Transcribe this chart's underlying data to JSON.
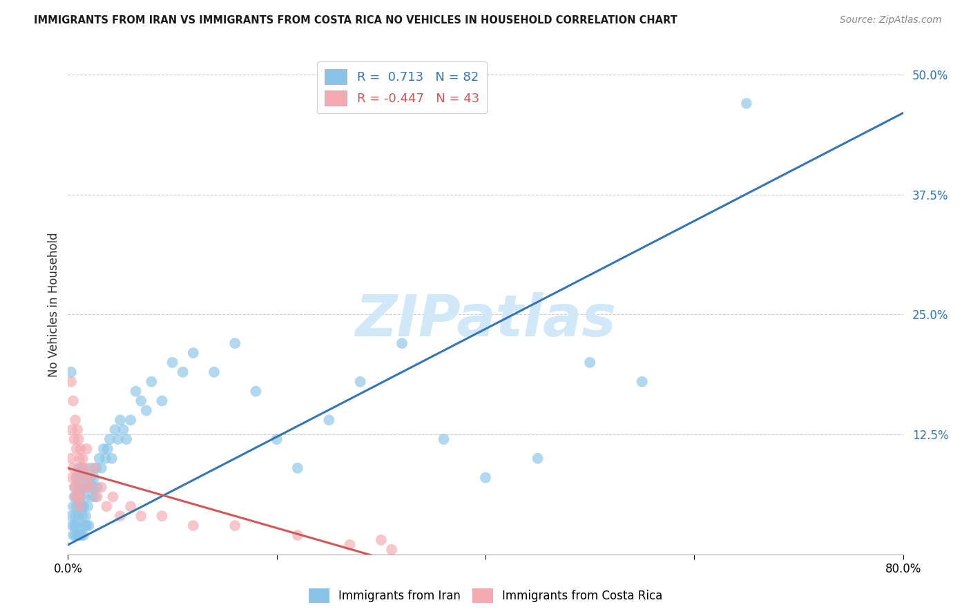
{
  "title": "IMMIGRANTS FROM IRAN VS IMMIGRANTS FROM COSTA RICA NO VEHICLES IN HOUSEHOLD CORRELATION CHART",
  "source": "Source: ZipAtlas.com",
  "ylabel": "No Vehicles in Household",
  "iran_R": 0.713,
  "iran_N": 82,
  "costa_rica_R": -0.447,
  "costa_rica_N": 43,
  "xlim": [
    0.0,
    0.8
  ],
  "ylim": [
    0.0,
    0.52
  ],
  "yticks": [
    0.0,
    0.125,
    0.25,
    0.375,
    0.5
  ],
  "iran_color": "#89c4e8",
  "costa_rica_color": "#f4a8b0",
  "iran_line_color": "#3375b5",
  "costa_rica_line_color": "#d45555",
  "watermark": "ZIPatlas",
  "watermark_color": "#d0e8f8",
  "background_color": "#ffffff",
  "grid_color": "#cccccc",
  "iran_line_x": [
    0.0,
    0.8
  ],
  "iran_line_y": [
    0.01,
    0.46
  ],
  "costa_rica_line_x": [
    0.0,
    0.32
  ],
  "costa_rica_line_y": [
    0.09,
    -0.01
  ],
  "iran_scatter_x": [
    0.003,
    0.004,
    0.005,
    0.005,
    0.006,
    0.006,
    0.007,
    0.007,
    0.007,
    0.008,
    0.008,
    0.008,
    0.009,
    0.009,
    0.01,
    0.01,
    0.01,
    0.011,
    0.011,
    0.012,
    0.012,
    0.012,
    0.013,
    0.013,
    0.014,
    0.014,
    0.014,
    0.015,
    0.015,
    0.016,
    0.016,
    0.017,
    0.017,
    0.018,
    0.018,
    0.019,
    0.02,
    0.02,
    0.021,
    0.022,
    0.023,
    0.024,
    0.025,
    0.026,
    0.027,
    0.028,
    0.03,
    0.032,
    0.034,
    0.036,
    0.038,
    0.04,
    0.042,
    0.045,
    0.048,
    0.05,
    0.053,
    0.056,
    0.06,
    0.065,
    0.07,
    0.075,
    0.08,
    0.09,
    0.1,
    0.11,
    0.12,
    0.14,
    0.16,
    0.18,
    0.2,
    0.22,
    0.25,
    0.28,
    0.32,
    0.36,
    0.4,
    0.45,
    0.5,
    0.55,
    0.65,
    0.003
  ],
  "iran_scatter_y": [
    0.04,
    0.03,
    0.05,
    0.02,
    0.06,
    0.03,
    0.04,
    0.07,
    0.02,
    0.05,
    0.08,
    0.03,
    0.06,
    0.02,
    0.07,
    0.04,
    0.09,
    0.05,
    0.02,
    0.06,
    0.03,
    0.08,
    0.05,
    0.02,
    0.07,
    0.04,
    0.09,
    0.05,
    0.02,
    0.06,
    0.03,
    0.07,
    0.04,
    0.08,
    0.03,
    0.05,
    0.07,
    0.03,
    0.09,
    0.08,
    0.06,
    0.07,
    0.08,
    0.06,
    0.09,
    0.07,
    0.1,
    0.09,
    0.11,
    0.1,
    0.11,
    0.12,
    0.1,
    0.13,
    0.12,
    0.14,
    0.13,
    0.12,
    0.14,
    0.17,
    0.16,
    0.15,
    0.18,
    0.16,
    0.2,
    0.19,
    0.21,
    0.19,
    0.22,
    0.17,
    0.12,
    0.09,
    0.14,
    0.18,
    0.22,
    0.12,
    0.08,
    0.1,
    0.2,
    0.18,
    0.47,
    0.19
  ],
  "costa_rica_scatter_x": [
    0.003,
    0.004,
    0.004,
    0.005,
    0.005,
    0.006,
    0.006,
    0.007,
    0.007,
    0.008,
    0.008,
    0.009,
    0.009,
    0.01,
    0.01,
    0.011,
    0.011,
    0.012,
    0.012,
    0.013,
    0.014,
    0.015,
    0.016,
    0.017,
    0.018,
    0.02,
    0.022,
    0.025,
    0.028,
    0.032,
    0.037,
    0.043,
    0.05,
    0.06,
    0.07,
    0.09,
    0.12,
    0.16,
    0.22,
    0.27,
    0.3,
    0.31,
    0.003
  ],
  "costa_rica_scatter_y": [
    0.1,
    0.13,
    0.08,
    0.16,
    0.09,
    0.12,
    0.07,
    0.14,
    0.06,
    0.11,
    0.08,
    0.13,
    0.06,
    0.12,
    0.07,
    0.1,
    0.05,
    0.11,
    0.06,
    0.09,
    0.1,
    0.08,
    0.09,
    0.07,
    0.11,
    0.08,
    0.07,
    0.09,
    0.06,
    0.07,
    0.05,
    0.06,
    0.04,
    0.05,
    0.04,
    0.04,
    0.03,
    0.03,
    0.02,
    0.01,
    0.015,
    0.005,
    0.18
  ]
}
